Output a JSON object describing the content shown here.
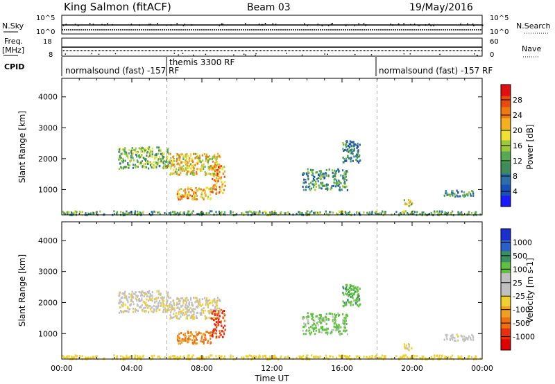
{
  "header": {
    "station": "King Salmon (fitACF)",
    "beam": "Beam 03",
    "date": "19/May/2016"
  },
  "status_panels": {
    "nsky_label": "N.Sky",
    "nsky_ticks": [
      "10^5",
      "10^0"
    ],
    "nsearch_label": "N.Search",
    "nsearch_ticks": [
      "10^5",
      "10^0"
    ],
    "freq_label": "Freq.",
    "freq_unit": "[MHz]",
    "freq_ticks": [
      "18",
      "8"
    ],
    "nave_label": "Nave",
    "nave_ticks": [
      "60",
      "0"
    ],
    "cpid_label": "CPID",
    "cpid_segments": [
      {
        "name": "normalsound (fast) -157 RF",
        "start_h": 0,
        "end_h": 6
      },
      {
        "name": "themis 3300 RF",
        "start_h": 6,
        "end_h": 18
      },
      {
        "name": "normalsound (fast) -157 RF",
        "start_h": 18,
        "end_h": 24
      }
    ]
  },
  "axes": {
    "ylabel": "Slant Range [km]",
    "xlabel": "Time UT",
    "yticks": [
      "1000",
      "2000",
      "3000",
      "4000"
    ],
    "ytick_values": [
      1000,
      2000,
      3000,
      4000
    ],
    "xticks": [
      "00:00",
      "04:00",
      "08:00",
      "12:00",
      "16:00",
      "20:00",
      "00:00"
    ],
    "xtick_hours": [
      0,
      4,
      8,
      12,
      16,
      20,
      24
    ],
    "dashed_lines_h": [
      6,
      18
    ]
  },
  "power_colorbar": {
    "label": "Power [dB]",
    "ticks": [
      "4",
      "8",
      "12",
      "16",
      "20",
      "24",
      "28"
    ],
    "colors": [
      "#1a1aff",
      "#1a4fb8",
      "#2c6fa8",
      "#3e8c5a",
      "#57a853",
      "#9cc93a",
      "#f0e030",
      "#f5b020",
      "#f07a10",
      "#e84a10",
      "#e01010"
    ]
  },
  "velocity_colorbar": {
    "label": "Velocity [m s-1]",
    "ticks": [
      "1000",
      "500",
      "100",
      "25",
      "-25",
      "-100",
      "-500",
      "-1000"
    ],
    "colors": [
      "#1a2fd0",
      "#2a60c8",
      "#3a9060",
      "#60c040",
      "#c0c0c0",
      "#c0c0c0",
      "#f0d030",
      "#f0a020",
      "#f07010",
      "#e83010",
      "#e00000"
    ]
  },
  "chart_data": {
    "type": "heatmap",
    "title": "King Salmon (fitACF)",
    "xlabel": "Time UT",
    "ylabel": "Slant Range [km]",
    "xlim_hours": [
      0,
      24
    ],
    "ylim_km": [
      180,
      4600
    ],
    "panels": [
      "Power [dB]",
      "Velocity [m s-1]"
    ],
    "echo_regions": [
      {
        "t0": 3.2,
        "t1": 6.2,
        "r0": 1700,
        "r1": 2400,
        "power_db": 14,
        "velocity": -10
      },
      {
        "t0": 6.0,
        "t1": 9.0,
        "r0": 1500,
        "r1": 2200,
        "power_db": 20,
        "velocity": -15
      },
      {
        "t0": 6.5,
        "t1": 8.5,
        "r0": 700,
        "r1": 1100,
        "power_db": 22,
        "velocity": -300
      },
      {
        "t0": 8.5,
        "t1": 9.3,
        "r0": 900,
        "r1": 1800,
        "power_db": 24,
        "velocity": -700
      },
      {
        "t0": 13.7,
        "t1": 16.3,
        "r0": 1000,
        "r1": 1700,
        "power_db": 10,
        "velocity": 150
      },
      {
        "t0": 16.0,
        "t1": 17.0,
        "r0": 1900,
        "r1": 2600,
        "power_db": 8,
        "velocity": 200
      },
      {
        "t0": 19.5,
        "t1": 20.0,
        "r0": 500,
        "r1": 700,
        "power_db": 16,
        "velocity": -20
      },
      {
        "t0": 21.8,
        "t1": 23.5,
        "r0": 800,
        "r1": 1000,
        "power_db": 8,
        "velocity": -5
      },
      {
        "t0": 0.0,
        "t1": 24.0,
        "r0": 200,
        "r1": 330,
        "power_db": 12,
        "velocity": -60
      }
    ]
  }
}
